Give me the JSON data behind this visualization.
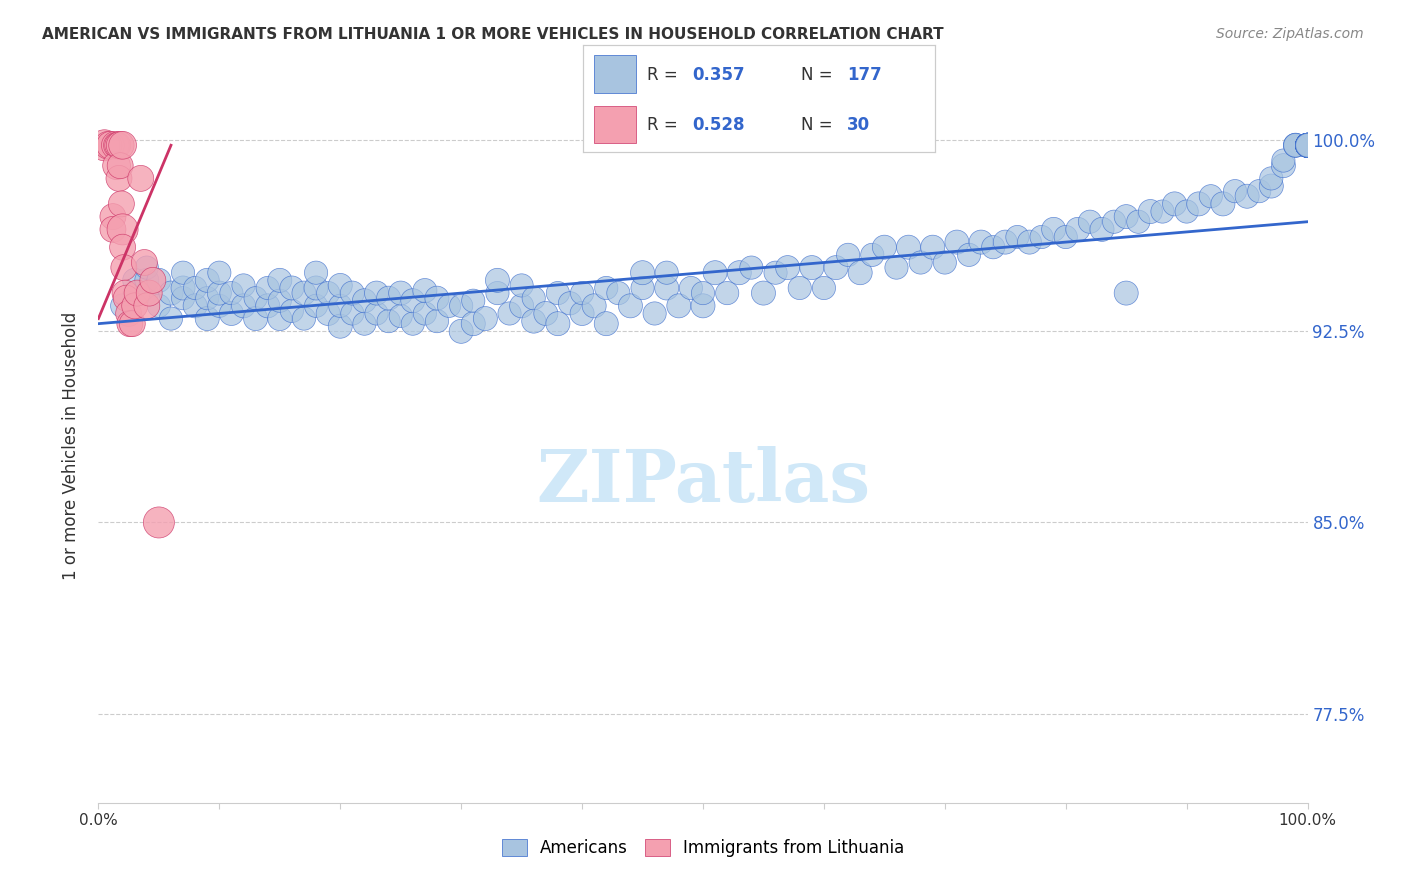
{
  "title": "AMERICAN VS IMMIGRANTS FROM LITHUANIA 1 OR MORE VEHICLES IN HOUSEHOLD CORRELATION CHART",
  "source": "Source: ZipAtlas.com",
  "xlabel": "",
  "ylabel": "1 or more Vehicles in Household",
  "xlim": [
    0.0,
    1.0
  ],
  "ylim": [
    0.74,
    1.02
  ],
  "yticks": [
    0.775,
    0.85,
    0.925,
    1.0
  ],
  "ytick_labels": [
    "77.5%",
    "85.0%",
    "92.5%",
    "100.0%"
  ],
  "xtick_labels": [
    "0.0%",
    "100.0%"
  ],
  "xticks": [
    0.0,
    1.0
  ],
  "american_R": 0.357,
  "american_N": 177,
  "lithuania_R": 0.528,
  "lithuania_N": 30,
  "blue_color": "#a8c4e0",
  "blue_line_color": "#3366cc",
  "pink_color": "#f4a0b0",
  "pink_line_color": "#cc3366",
  "legend_R_color": "#3366cc",
  "legend_N_color": "#3366cc",
  "watermark": "ZIPatlas",
  "watermark_color": "#d0e8f8",
  "grid_color": "#cccccc",
  "title_color": "#333333",
  "american_x": [
    0.02,
    0.03,
    0.03,
    0.04,
    0.04,
    0.04,
    0.05,
    0.05,
    0.06,
    0.06,
    0.07,
    0.07,
    0.07,
    0.08,
    0.08,
    0.09,
    0.09,
    0.09,
    0.1,
    0.1,
    0.1,
    0.11,
    0.11,
    0.12,
    0.12,
    0.13,
    0.13,
    0.14,
    0.14,
    0.15,
    0.15,
    0.15,
    0.16,
    0.16,
    0.17,
    0.17,
    0.18,
    0.18,
    0.18,
    0.19,
    0.19,
    0.2,
    0.2,
    0.2,
    0.21,
    0.21,
    0.22,
    0.22,
    0.23,
    0.23,
    0.24,
    0.24,
    0.25,
    0.25,
    0.26,
    0.26,
    0.27,
    0.27,
    0.28,
    0.28,
    0.29,
    0.3,
    0.3,
    0.31,
    0.31,
    0.32,
    0.33,
    0.33,
    0.34,
    0.35,
    0.35,
    0.36,
    0.36,
    0.37,
    0.38,
    0.38,
    0.39,
    0.4,
    0.4,
    0.41,
    0.42,
    0.42,
    0.43,
    0.44,
    0.45,
    0.45,
    0.46,
    0.47,
    0.47,
    0.48,
    0.49,
    0.5,
    0.5,
    0.51,
    0.52,
    0.53,
    0.54,
    0.55,
    0.56,
    0.57,
    0.58,
    0.59,
    0.6,
    0.61,
    0.62,
    0.63,
    0.64,
    0.65,
    0.66,
    0.67,
    0.68,
    0.69,
    0.7,
    0.71,
    0.72,
    0.73,
    0.74,
    0.75,
    0.76,
    0.77,
    0.78,
    0.79,
    0.8,
    0.81,
    0.82,
    0.83,
    0.84,
    0.85,
    0.86,
    0.87,
    0.88,
    0.89,
    0.9,
    0.91,
    0.92,
    0.93,
    0.94,
    0.95,
    0.96,
    0.97,
    0.97,
    0.98,
    0.98,
    0.99,
    0.99,
    0.99,
    1.0,
    1.0,
    1.0,
    1.0,
    1.0,
    1.0,
    1.0,
    1.0,
    1.0,
    1.0,
    1.0,
    1.0,
    1.0,
    1.0,
    1.0,
    1.0,
    1.0,
    1.0,
    1.0,
    1.0,
    1.0,
    1.0,
    1.0,
    1.0,
    1.0,
    1.0,
    1.0,
    1.0,
    1.0,
    1.0,
    0.85
  ],
  "american_y": [
    0.935,
    0.94,
    0.945,
    0.94,
    0.945,
    0.95,
    0.935,
    0.945,
    0.93,
    0.94,
    0.938,
    0.942,
    0.948,
    0.935,
    0.942,
    0.93,
    0.938,
    0.945,
    0.935,
    0.94,
    0.948,
    0.932,
    0.94,
    0.935,
    0.943,
    0.93,
    0.938,
    0.935,
    0.942,
    0.93,
    0.937,
    0.945,
    0.933,
    0.942,
    0.93,
    0.94,
    0.935,
    0.942,
    0.948,
    0.932,
    0.94,
    0.927,
    0.935,
    0.943,
    0.932,
    0.94,
    0.928,
    0.937,
    0.932,
    0.94,
    0.929,
    0.938,
    0.931,
    0.94,
    0.928,
    0.937,
    0.932,
    0.941,
    0.929,
    0.938,
    0.935,
    0.925,
    0.935,
    0.928,
    0.937,
    0.93,
    0.94,
    0.945,
    0.932,
    0.935,
    0.943,
    0.929,
    0.938,
    0.932,
    0.94,
    0.928,
    0.936,
    0.932,
    0.94,
    0.935,
    0.942,
    0.928,
    0.94,
    0.935,
    0.942,
    0.948,
    0.932,
    0.942,
    0.948,
    0.935,
    0.942,
    0.935,
    0.94,
    0.948,
    0.94,
    0.948,
    0.95,
    0.94,
    0.948,
    0.95,
    0.942,
    0.95,
    0.942,
    0.95,
    0.955,
    0.948,
    0.955,
    0.958,
    0.95,
    0.958,
    0.952,
    0.958,
    0.952,
    0.96,
    0.955,
    0.96,
    0.958,
    0.96,
    0.962,
    0.96,
    0.962,
    0.965,
    0.962,
    0.965,
    0.968,
    0.965,
    0.968,
    0.97,
    0.968,
    0.972,
    0.972,
    0.975,
    0.972,
    0.975,
    0.978,
    0.975,
    0.98,
    0.978,
    0.98,
    0.982,
    0.985,
    0.99,
    0.992,
    0.998,
    0.998,
    0.998,
    0.998,
    0.998,
    0.998,
    0.998,
    0.998,
    0.998,
    0.998,
    0.998,
    0.998,
    0.998,
    0.998,
    0.998,
    0.998,
    0.998,
    0.998,
    0.998,
    0.998,
    0.998,
    0.998,
    0.998,
    0.998,
    0.998,
    0.998,
    0.998,
    0.998,
    0.998,
    0.998,
    0.998,
    0.998,
    0.998,
    0.94
  ],
  "american_sizes": [
    300,
    280,
    300,
    280,
    300,
    280,
    280,
    300,
    280,
    300,
    280,
    300,
    280,
    300,
    280,
    300,
    280,
    300,
    280,
    300,
    280,
    300,
    280,
    300,
    280,
    300,
    280,
    300,
    280,
    300,
    280,
    300,
    280,
    300,
    280,
    300,
    280,
    300,
    280,
    300,
    280,
    300,
    280,
    300,
    280,
    300,
    280,
    300,
    280,
    300,
    280,
    300,
    280,
    300,
    280,
    300,
    280,
    300,
    280,
    300,
    280,
    300,
    280,
    300,
    280,
    300,
    280,
    300,
    280,
    300,
    280,
    300,
    280,
    300,
    280,
    300,
    280,
    300,
    280,
    300,
    280,
    300,
    280,
    300,
    280,
    300,
    280,
    300,
    280,
    300,
    280,
    300,
    280,
    300,
    280,
    300,
    280,
    300,
    280,
    300,
    280,
    300,
    280,
    300,
    280,
    300,
    280,
    300,
    280,
    300,
    280,
    300,
    280,
    300,
    280,
    300,
    280,
    300,
    280,
    300,
    280,
    300,
    280,
    300,
    280,
    300,
    280,
    300,
    280,
    300,
    280,
    300,
    280,
    300,
    280,
    300,
    280,
    300,
    280,
    300,
    280,
    300,
    280,
    300,
    280,
    300,
    280,
    300,
    280,
    300,
    280,
    300,
    280,
    300,
    280,
    300,
    280,
    300,
    280,
    300,
    280,
    300,
    280,
    300,
    280,
    300,
    280,
    300,
    280,
    300,
    280,
    300,
    280,
    300,
    280,
    300,
    300
  ],
  "lithuania_x": [
    0.005,
    0.008,
    0.01,
    0.012,
    0.012,
    0.014,
    0.015,
    0.015,
    0.016,
    0.017,
    0.018,
    0.018,
    0.019,
    0.02,
    0.02,
    0.02,
    0.021,
    0.022,
    0.023,
    0.025,
    0.026,
    0.028,
    0.03,
    0.032,
    0.035,
    0.038,
    0.04,
    0.042,
    0.045,
    0.05
  ],
  "lithuania_y": [
    0.998,
    0.998,
    0.998,
    0.97,
    0.965,
    0.998,
    0.998,
    0.99,
    0.998,
    0.985,
    0.998,
    0.99,
    0.975,
    0.998,
    0.965,
    0.958,
    0.95,
    0.94,
    0.938,
    0.932,
    0.928,
    0.928,
    0.935,
    0.94,
    0.985,
    0.952,
    0.935,
    0.94,
    0.945,
    0.85
  ],
  "lithuania_sizes": [
    500,
    400,
    400,
    350,
    350,
    400,
    350,
    400,
    350,
    350,
    400,
    350,
    350,
    400,
    500,
    350,
    350,
    350,
    350,
    350,
    350,
    350,
    350,
    350,
    350,
    350,
    350,
    350,
    350,
    500
  ],
  "blue_line_x": [
    0.0,
    1.0
  ],
  "blue_line_y": [
    0.928,
    0.968
  ],
  "pink_line_x": [
    0.0,
    0.06
  ],
  "pink_line_y": [
    0.93,
    0.998
  ]
}
